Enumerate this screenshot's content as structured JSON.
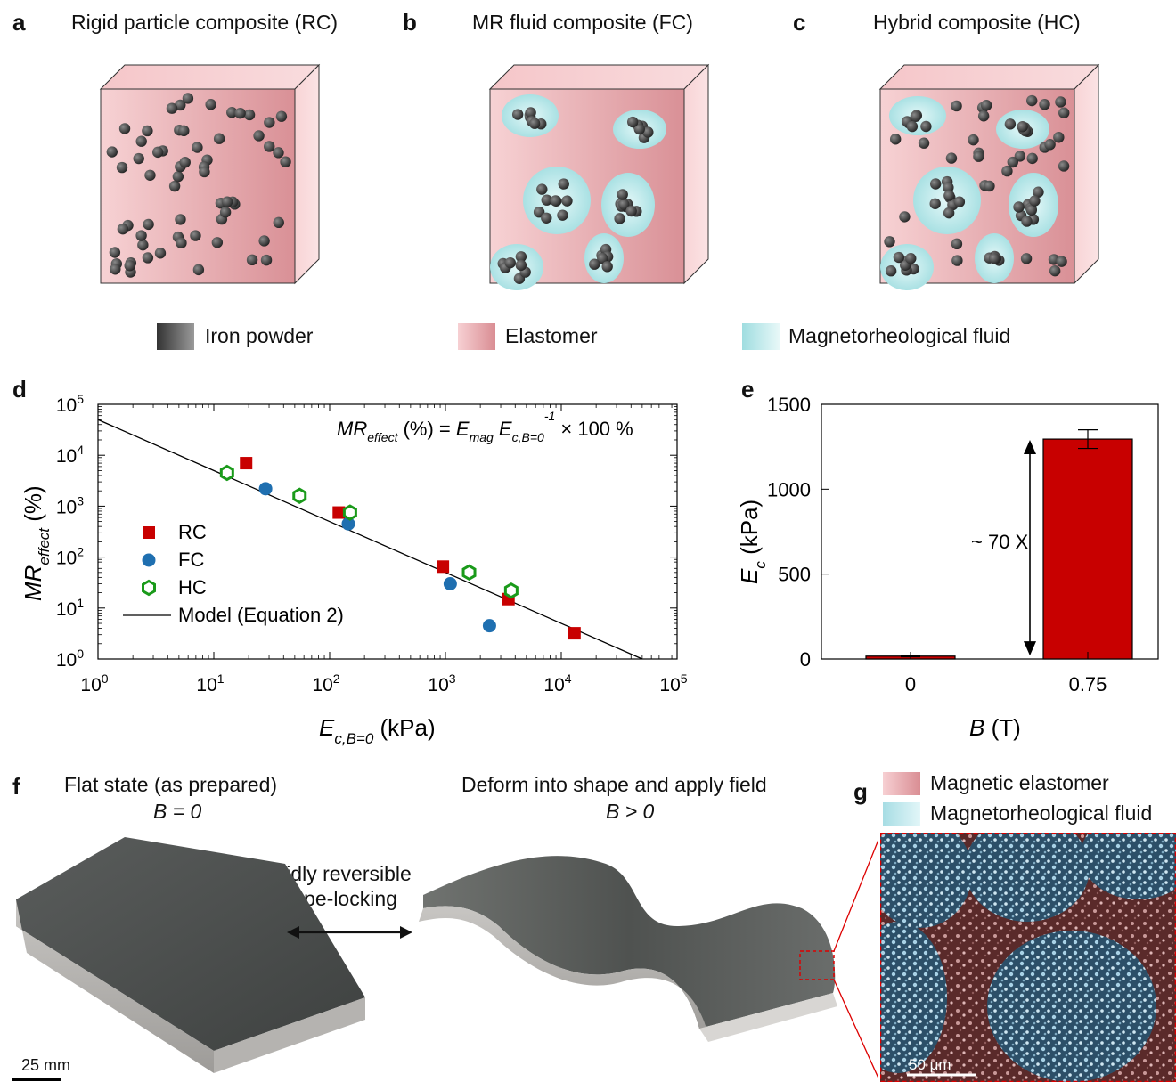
{
  "panels": {
    "a": {
      "label": "a",
      "title": "Rigid particle composite (RC)"
    },
    "b": {
      "label": "b",
      "title": "MR fluid composite (FC)"
    },
    "c": {
      "label": "c",
      "title": "Hybrid composite (HC)"
    },
    "d": {
      "label": "d"
    },
    "e": {
      "label": "e"
    },
    "f": {
      "label": "f",
      "left_title": "Flat state (as prepared)",
      "left_sub": "B = 0",
      "right_title": "Deform into shape and apply field",
      "right_sub": "B > 0",
      "arrow_label_1": "Rapidly reversible",
      "arrow_label_2": "shape-locking",
      "scale": "25 mm"
    },
    "g": {
      "label": "g",
      "legend": [
        "Magnetic elastomer",
        "Magnetorheological fluid"
      ],
      "scale": "50 μm"
    }
  },
  "legend_top": [
    "Iron powder",
    "Elastomer",
    "Magnetorheological fluid"
  ],
  "colors": {
    "elastomer": "#e8a8ac",
    "mr_fluid": "#aee4e6",
    "iron": "#3a3a3a",
    "rc": "#c80000",
    "fc": "#1f6fb0",
    "hc": "#1a9a1a"
  },
  "chart_data": [
    {
      "type": "scatter",
      "panel": "d",
      "xscale": "log",
      "yscale": "log",
      "xlim": [
        1,
        100000
      ],
      "ylim": [
        1,
        100000
      ],
      "xticks": [
        "10^0",
        "10^1",
        "10^2",
        "10^3",
        "10^4",
        "10^5"
      ],
      "yticks": [
        "10^0",
        "10^1",
        "10^2",
        "10^3",
        "10^4",
        "10^5"
      ],
      "xlabel": "E_c,B=0 (kPa)",
      "ylabel": "MR_effect (%)",
      "annotation": "MR_effect (%) = E_mag E_c,B=0^-1 × 100 %",
      "legend": [
        "RC",
        "FC",
        "HC",
        "Model (Equation 2)"
      ],
      "series": [
        {
          "name": "RC",
          "marker": "square",
          "color": "#c80000",
          "points": [
            [
              19,
              7000
            ],
            [
              120,
              750
            ],
            [
              950,
              65
            ],
            [
              3500,
              15
            ],
            [
              13000,
              3.2
            ]
          ]
        },
        {
          "name": "FC",
          "marker": "circle",
          "color": "#1f6fb0",
          "points": [
            [
              28,
              2200
            ],
            [
              145,
              450
            ],
            [
              1100,
              30
            ],
            [
              2400,
              4.5
            ]
          ]
        },
        {
          "name": "HC",
          "marker": "hexagon",
          "color": "#1a9a1a",
          "points": [
            [
              13,
              4500
            ],
            [
              55,
              1600
            ],
            [
              150,
              750
            ],
            [
              1600,
              50
            ],
            [
              3700,
              22
            ]
          ]
        },
        {
          "name": "Model (Equation 2)",
          "marker": "line",
          "color": "#000000",
          "points": [
            [
              1,
              50000
            ],
            [
              50000,
              1
            ]
          ]
        }
      ]
    },
    {
      "type": "bar",
      "panel": "e",
      "categories": [
        "0",
        "0.75"
      ],
      "values": [
        17,
        1295
      ],
      "errors": [
        4,
        55
      ],
      "ylim": [
        0,
        1500
      ],
      "yticks": [
        0,
        500,
        1000,
        1500
      ],
      "xlabel": "B (T)",
      "ylabel": "E_c (kPa)",
      "annotation": "~ 70 X",
      "color": "#c80000"
    }
  ]
}
